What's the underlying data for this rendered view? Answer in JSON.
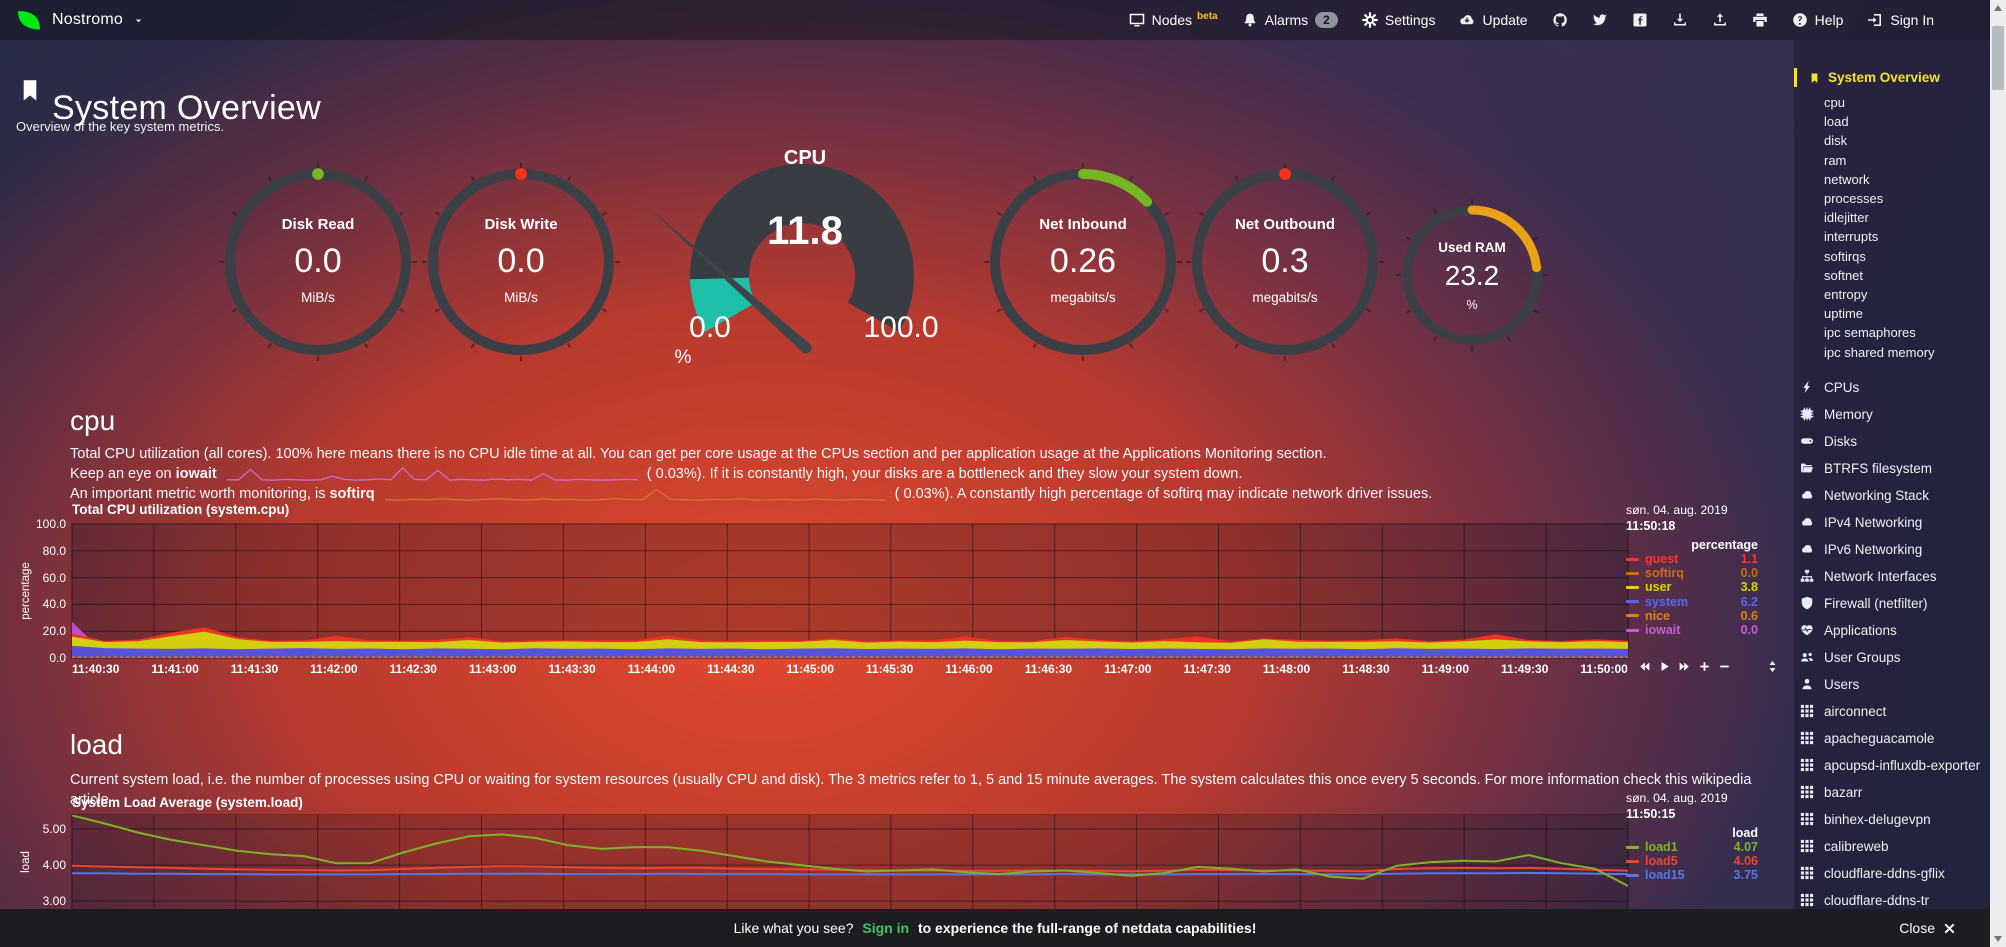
{
  "navbar": {
    "brand": "Nostromo",
    "nodes_label": "Nodes",
    "nodes_beta": "beta",
    "alarms_label": "Alarms",
    "alarms_count": "2",
    "settings_label": "Settings",
    "update_label": "Update",
    "help_label": "Help",
    "signin_label": "Sign In"
  },
  "header": {
    "title": "System Overview",
    "subtitle": "Overview of the key system metrics."
  },
  "gauges": {
    "disk_read": {
      "label": "Disk Read",
      "value": "0.0",
      "unit": "MiB/s",
      "percent": 0,
      "color": "#76b622"
    },
    "disk_write": {
      "label": "Disk Write",
      "value": "0.0",
      "unit": "MiB/s",
      "percent": 0,
      "color": "#ff3217"
    },
    "cpu": {
      "label": "CPU",
      "value": "11.8",
      "min": "0.0",
      "max": "100.0",
      "unit": "%",
      "percent": 11.8,
      "color": "#1fbfa9"
    },
    "net_inbound": {
      "label": "Net Inbound",
      "value": "0.26",
      "unit": "megabits/s",
      "percent": 13,
      "color": "#76b622"
    },
    "net_outbound": {
      "label": "Net Outbound",
      "value": "0.3",
      "unit": "megabits/s",
      "percent": 2,
      "color": "#ff3217"
    },
    "used_ram": {
      "label": "Used RAM",
      "value": "23.2",
      "unit": "%",
      "percent": 23.2,
      "color": "#eda117"
    }
  },
  "cpu_section": {
    "heading": "cpu",
    "line1": "Total CPU utilization (all cores). 100% here means there is no CPU idle time at all. You can get per core usage at the CPUs section and per application usage at the Applications Monitoring section.",
    "line2_before": "Keep an eye on",
    "line2_keyword": "iowait",
    "line2_mid": "( 0.03%",
    "line2_after": "). If it is constantly high, your disks are a bottleneck and they slow your system down.",
    "line3_before": "An important metric worth monitoring, is",
    "line3_keyword": "softirq",
    "line3_mid": "( 0.03%",
    "line3_after": "). A constantly high percentage of softirq may indicate network driver issues."
  },
  "cpu_chart": {
    "date": "søn. 04. aug. 2019",
    "time": "11:50:18",
    "unit_header": "percentage",
    "legend": [
      {
        "name": "guest",
        "value": "1.1",
        "color": "#fb3630"
      },
      {
        "name": "softirq",
        "value": "0.0",
        "color": "#cf6a0e"
      },
      {
        "name": "user",
        "value": "3.8",
        "color": "#dcd400",
        "bold": true
      },
      {
        "name": "system",
        "value": "6.2",
        "color": "#5668f0"
      },
      {
        "name": "nice",
        "value": "0.6",
        "color": "#d98117"
      },
      {
        "name": "iowait",
        "value": "0.0",
        "color": "#c85cd8"
      }
    ]
  },
  "load_section": {
    "heading": "load",
    "line1": "Current system load, i.e. the number of processes using CPU or waiting for system resources (usually CPU and disk). The 3 metrics refer to 1, 5 and 15 minute averages. The system calculates this once every 5 seconds. For more information check this wikipedia article"
  },
  "load_chart": {
    "date": "søn. 04. aug. 2019",
    "time": "11:50:15",
    "unit_header": "load",
    "legend": [
      {
        "name": "load1",
        "value": "4.07",
        "color": "#7cb528"
      },
      {
        "name": "load5",
        "value": "4.06",
        "color": "#ea4633"
      },
      {
        "name": "load15",
        "value": "3.75",
        "color": "#5577e8"
      }
    ]
  },
  "sidebar": {
    "active": {
      "label": "System Overview"
    },
    "submenu": [
      "cpu",
      "load",
      "disk",
      "ram",
      "network",
      "processes",
      "idlejitter",
      "interrupts",
      "softirqs",
      "softnet",
      "entropy",
      "uptime",
      "ipc semaphores",
      "ipc shared memory"
    ],
    "sections": [
      {
        "icon": "bolt",
        "label": "CPUs"
      },
      {
        "icon": "memory",
        "label": "Memory"
      },
      {
        "icon": "hdd",
        "label": "Disks"
      },
      {
        "icon": "folder",
        "label": "BTRFS filesystem"
      },
      {
        "icon": "cloud",
        "label": "Networking Stack"
      },
      {
        "icon": "cloud",
        "label": "IPv4 Networking"
      },
      {
        "icon": "cloud",
        "label": "IPv6 Networking"
      },
      {
        "icon": "sitemap",
        "label": "Network Interfaces"
      },
      {
        "icon": "shield",
        "label": "Firewall (netfilter)"
      },
      {
        "icon": "heartbeat",
        "label": "Applications"
      },
      {
        "icon": "users",
        "label": "User Groups"
      },
      {
        "icon": "user",
        "label": "Users"
      },
      {
        "icon": "grid",
        "label": "airconnect"
      },
      {
        "icon": "grid",
        "label": "apacheguacamole"
      },
      {
        "icon": "grid",
        "label": "apcupsd-influxdb-exporter"
      },
      {
        "icon": "grid",
        "label": "bazarr"
      },
      {
        "icon": "grid",
        "label": "binhex-delugevpn"
      },
      {
        "icon": "grid",
        "label": "calibreweb"
      },
      {
        "icon": "grid",
        "label": "cloudflare-ddns-gflix"
      },
      {
        "icon": "grid",
        "label": "cloudflare-ddns-tr"
      }
    ]
  },
  "bottom_bar": {
    "prefix": "Like what you see?",
    "link": "Sign in",
    "suffix": "to experience the full-range of netdata capabilities!",
    "close": "Close"
  },
  "chart_data": [
    {
      "type": "area-stacked",
      "title": "Total CPU utilization (system.cpu)",
      "ylabel": "percentage",
      "ylim": [
        0,
        100
      ],
      "y_ticks": [
        "100.0",
        "80.0",
        "60.0",
        "40.0",
        "20.0",
        "0.0"
      ],
      "x_ticks": [
        "11:40:30",
        "11:41:00",
        "11:41:30",
        "11:42:00",
        "11:42:30",
        "11:43:00",
        "11:43:30",
        "11:44:00",
        "11:44:30",
        "11:45:00",
        "11:45:30",
        "11:46:00",
        "11:46:30",
        "11:47:00",
        "11:47:30",
        "11:48:00",
        "11:48:30",
        "11:49:00",
        "11:49:30",
        "11:50:00"
      ],
      "series": [
        {
          "name": "system",
          "color": "#5753d8",
          "values": [
            9.2,
            7.4,
            7,
            6.8,
            7.2,
            6.6,
            7,
            7.4,
            6.8,
            7.1,
            6.6,
            7.2,
            6.9,
            6.5,
            7.3,
            6.8,
            7,
            6.6,
            7.2,
            6.8,
            7.1,
            6.5,
            7,
            7.3,
            6.7,
            7,
            6.8,
            7.2,
            6.6,
            7,
            6.9,
            7.2,
            6.7,
            7.1,
            6.8,
            6.5,
            7.2,
            6.9,
            7.1,
            6.6,
            7.3,
            6.8,
            7,
            6.7,
            7.2,
            6.9,
            7.1,
            6.8
          ]
        },
        {
          "name": "user",
          "color": "#d4cd10",
          "values": [
            6.8,
            4.5,
            5.5,
            9.5,
            12.5,
            7.5,
            5,
            4.6,
            5.8,
            4.9,
            5.4,
            4.7,
            6.5,
            5,
            4.8,
            5.6,
            4.9,
            5.3,
            6.8,
            5.1,
            4.7,
            5.5,
            5,
            6.2,
            4.8,
            5.3,
            4.9,
            5.8,
            5.1,
            4.7,
            6.5,
            5.2,
            4.9,
            5.5,
            5,
            4.8,
            6.8,
            5.3,
            4.9,
            5.6,
            5.1,
            4.8,
            5.4,
            7.2,
            5.2,
            4.9,
            5.5,
            5.1
          ]
        },
        {
          "name": "guest",
          "color": "#ee3223",
          "values": [
            2.2,
            0.8,
            1.2,
            2.5,
            3.2,
            1.5,
            0.9,
            1.1,
            3.8,
            1.2,
            0.8,
            1.5,
            2.2,
            0.9,
            1.1,
            0.8,
            1.4,
            0.9,
            2.8,
            1.1,
            0.9,
            1.3,
            0.8,
            1.2,
            1,
            0.9,
            1.4,
            3.2,
            1,
            0.8,
            2.5,
            1.1,
            0.9,
            1.2,
            4.5,
            1,
            0.8,
            1.3,
            0.9,
            1.1,
            2.2,
            0.9,
            1.2,
            3.8,
            1,
            0.9,
            1.3,
            1
          ]
        },
        {
          "name": "iowait",
          "color": "#bb50ca",
          "values": [
            27,
            3,
            0.3,
            0.2,
            0.2,
            0.2,
            0.3,
            0.2,
            0.2,
            0.3,
            0.2,
            0.2,
            0.3,
            0.2,
            0.2,
            1.5,
            0.2,
            0.3,
            0.2,
            0.2,
            0.3,
            0.2,
            0.2,
            0.3,
            0.2,
            0.2,
            0.3,
            0.2,
            1.2,
            0.2,
            0.3,
            0.2,
            0.2,
            0.3,
            0.2,
            0.2,
            0.3,
            0.2,
            0.2,
            0.3,
            0.2,
            0.2,
            0.3,
            0.2,
            0.2,
            0.3,
            0.2,
            0.2
          ]
        },
        {
          "name": "nice",
          "color": "#d98117",
          "flat_value": 0.6
        }
      ]
    },
    {
      "type": "line",
      "title": "System Load Average (system.load)",
      "ylabel": "load",
      "ylim": [
        2.78,
        5.39
      ],
      "y_ticks": [
        "5.00",
        "4.00",
        "3.00"
      ],
      "y_tick_values": [
        5,
        4,
        3
      ],
      "series": [
        {
          "name": "load1",
          "color": "#7cb528",
          "values": [
            5.38,
            5.15,
            4.9,
            4.7,
            4.55,
            4.4,
            4.3,
            4.25,
            4.05,
            4.05,
            4.35,
            4.6,
            4.8,
            4.85,
            4.75,
            4.55,
            4.45,
            4.5,
            4.5,
            4.4,
            4.25,
            4.1,
            4,
            3.9,
            3.82,
            3.85,
            3.88,
            3.8,
            3.75,
            3.82,
            3.85,
            3.78,
            3.7,
            3.78,
            3.95,
            3.9,
            3.82,
            3.88,
            3.68,
            3.62,
            3.98,
            4.08,
            4.12,
            4.1,
            4.28,
            4.05,
            3.9,
            3.42
          ]
        },
        {
          "name": "load5",
          "color": "#ea4633",
          "values": [
            3.98,
            3.96,
            3.94,
            3.92,
            3.9,
            3.88,
            3.87,
            3.86,
            3.85,
            3.86,
            3.89,
            3.92,
            3.95,
            3.97,
            3.96,
            3.94,
            3.92,
            3.91,
            3.92,
            3.92,
            3.9,
            3.89,
            3.88,
            3.87,
            3.86,
            3.85,
            3.85,
            3.84,
            3.84,
            3.85,
            3.85,
            3.84,
            3.83,
            3.84,
            3.87,
            3.86,
            3.85,
            3.85,
            3.84,
            3.83,
            3.89,
            3.91,
            3.92,
            3.91,
            3.92,
            3.9,
            3.87,
            3.84
          ]
        },
        {
          "name": "load15",
          "color": "#5577e8",
          "values": [
            3.77,
            3.77,
            3.76,
            3.76,
            3.75,
            3.75,
            3.74,
            3.74,
            3.74,
            3.74,
            3.75,
            3.75,
            3.76,
            3.76,
            3.76,
            3.75,
            3.75,
            3.75,
            3.76,
            3.75,
            3.75,
            3.75,
            3.74,
            3.74,
            3.74,
            3.74,
            3.74,
            3.74,
            3.74,
            3.74,
            3.75,
            3.74,
            3.74,
            3.74,
            3.75,
            3.75,
            3.75,
            3.75,
            3.74,
            3.74,
            3.76,
            3.77,
            3.77,
            3.77,
            3.78,
            3.77,
            3.76,
            3.75
          ]
        }
      ]
    },
    {
      "type": "sparkline",
      "name": "iowait-inline",
      "color": "#c76bd6",
      "max": 3.4,
      "values": [
        0.3,
        0.3,
        2.8,
        0.3,
        0.2,
        0.4,
        0.3,
        0.2,
        0.3,
        1.2,
        0.4,
        0.2,
        0.3,
        0.5,
        0.3,
        3.2,
        0.4,
        0.3,
        2.6,
        0.2,
        0.4,
        0.3,
        0.2,
        0.5,
        0.3,
        0.4,
        0.2,
        1.8,
        0.3,
        0.2,
        0.4,
        0.3,
        0.2,
        0.3,
        0.4,
        0.3
      ]
    },
    {
      "type": "sparkline",
      "name": "softirq-inline",
      "color": "#c87a28",
      "max": 3.4,
      "values": [
        0.3,
        0.2,
        0.4,
        0.3,
        0.5,
        0.3,
        0.2,
        0.4,
        0.6,
        0.3,
        0.2,
        0.5,
        0.3,
        0.4,
        0.2,
        0.3,
        0.6,
        0.4,
        0.3,
        2.8,
        0.4,
        0.3,
        0.2,
        0.4,
        0.3,
        0.5,
        0.2,
        0.3,
        0.4,
        0.2,
        0.5,
        0.3,
        0.2,
        0.4,
        0.3,
        0.2
      ]
    }
  ]
}
